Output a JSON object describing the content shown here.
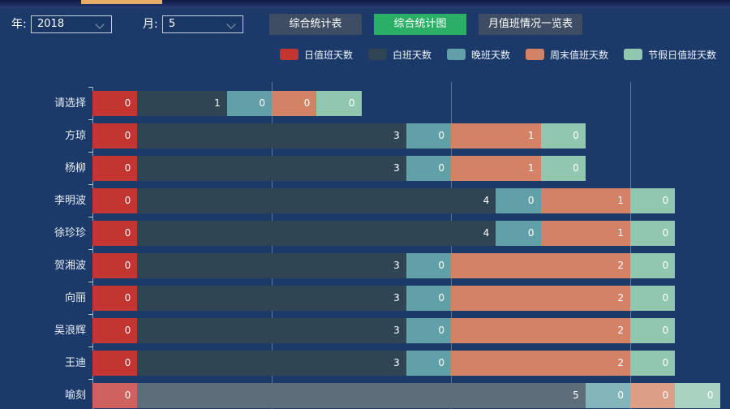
{
  "header": {
    "year_label": "年:",
    "year_value": "2018",
    "month_label": "月:",
    "month_value": "5",
    "buttons": [
      {
        "label": "综合统计表",
        "active": false
      },
      {
        "label": "综合统计图",
        "active": true
      },
      {
        "label": "月值班情况一览表",
        "active": false
      }
    ],
    "active_button_color": "#2bae66",
    "button_color": "#3e4d63",
    "tab_indicator_color": "#e6ac63"
  },
  "legend": [
    {
      "label": "日值班天数",
      "color": "#c23531"
    },
    {
      "label": "白班天数",
      "color": "#2f4554"
    },
    {
      "label": "晚班天数",
      "color": "#61a0a8"
    },
    {
      "label": "周末值班天数",
      "color": "#d48265"
    },
    {
      "label": "节假日值班天数",
      "color": "#91c7ae"
    }
  ],
  "chart_data": {
    "type": "bar",
    "orientation": "horizontal",
    "stacked": true,
    "categories": [
      "请选择",
      "方琼",
      "杨柳",
      "李明波",
      "徐珍珍",
      "贺湘波",
      "向丽",
      "吴浪辉",
      "王迪",
      "喻刻"
    ],
    "series": [
      {
        "name": "日值班天数",
        "color": "#c23531",
        "values": [
          0,
          0,
          0,
          0,
          0,
          0,
          0,
          0,
          0,
          0
        ]
      },
      {
        "name": "白班天数",
        "color": "#2f4554",
        "values": [
          1,
          3,
          3,
          4,
          4,
          3,
          3,
          3,
          3,
          5
        ]
      },
      {
        "name": "晚班天数",
        "color": "#61a0a8",
        "values": [
          0,
          0,
          0,
          0,
          0,
          0,
          0,
          0,
          0,
          0
        ]
      },
      {
        "name": "周末值班天数",
        "color": "#d48265",
        "values": [
          0,
          1,
          1,
          1,
          1,
          2,
          2,
          2,
          2,
          0
        ]
      },
      {
        "name": "节假日值班天数",
        "color": "#91c7ae",
        "values": [
          0,
          0,
          0,
          0,
          0,
          0,
          0,
          0,
          0,
          0
        ]
      }
    ],
    "segment_labels_visible": true,
    "min_segment_units": 0.5,
    "x_gridlines": [
      2,
      4,
      6
    ],
    "xlim": [
      0,
      7.1
    ],
    "legend_position": "top",
    "highlighted_category": "喻刻",
    "background_color": "#1b3a6a"
  }
}
